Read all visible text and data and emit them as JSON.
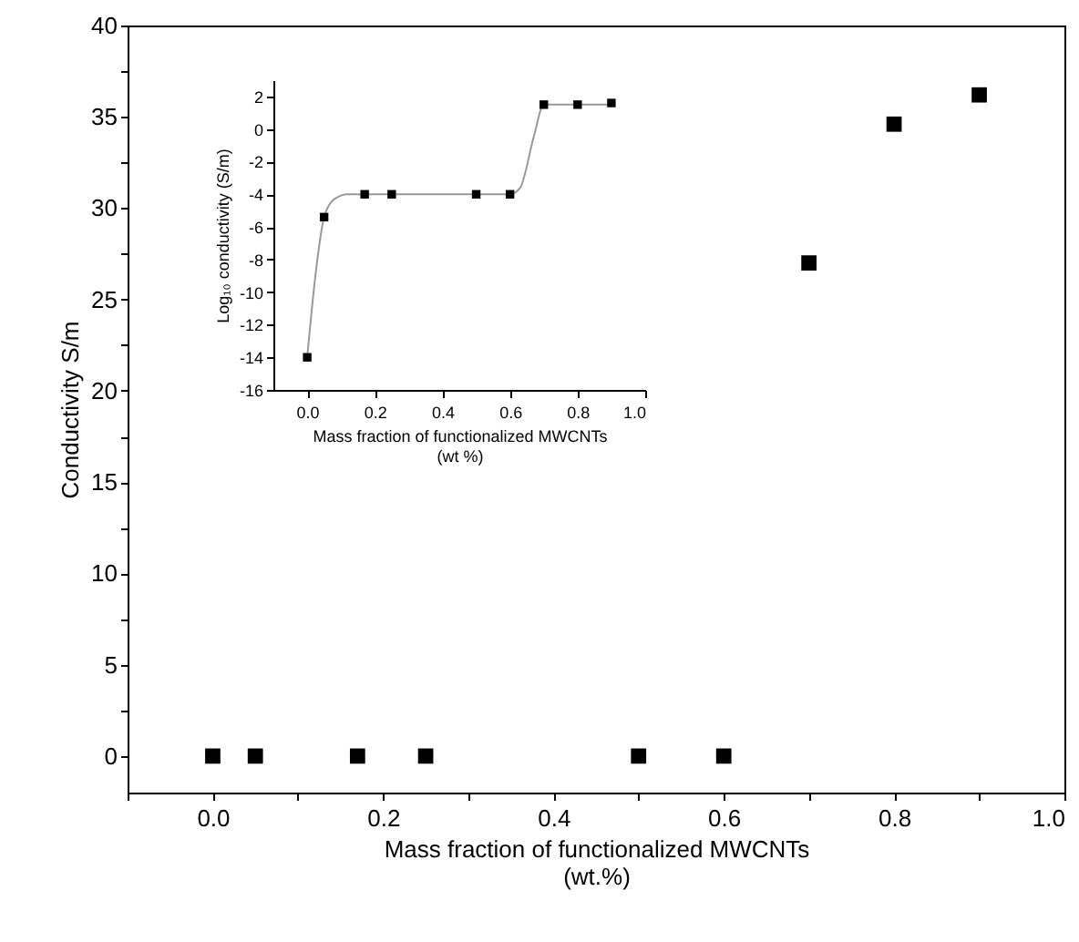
{
  "chart_data": [
    {
      "type": "scatter",
      "xlabel": "Mass fraction of functionalized MWCNTs\n(wt.%)",
      "ylabel": "Conductivity S/m",
      "marker": "square",
      "x": [
        0,
        0.05,
        0.17,
        0.25,
        0.5,
        0.6,
        0.7,
        0.8,
        0.9
      ],
      "series": [
        {
          "color": "#000000",
          "values": [
            0,
            0,
            0,
            0,
            0,
            0,
            27,
            34.6,
            36.2
          ]
        }
      ],
      "xlim": [
        -0.1,
        1.0
      ],
      "ylim": [
        -2,
        40
      ],
      "xticks": [
        {
          "value": -0.1,
          "label": null
        },
        {
          "value": 0,
          "label": "0.0"
        },
        {
          "value": 0.1,
          "label": null
        },
        {
          "value": 0.2,
          "label": "0.2"
        },
        {
          "value": 0.3,
          "label": null
        },
        {
          "value": 0.4,
          "label": "0.4"
        },
        {
          "value": 0.5,
          "label": null
        },
        {
          "value": 0.6,
          "label": "0.6"
        },
        {
          "value": 0.7,
          "label": null
        },
        {
          "value": 0.8,
          "label": "0.8"
        },
        {
          "value": 0.9,
          "label": null
        },
        {
          "value": 1.0,
          "label": "1.0"
        }
      ],
      "yticks": [
        0,
        {
          "value": 2.5,
          "label": null
        },
        5,
        {
          "value": 7.5,
          "label": null
        },
        10,
        {
          "value": 12.5,
          "label": null
        },
        15,
        {
          "value": 17.5,
          "label": null
        },
        20,
        {
          "value": 22.5,
          "label": null
        },
        25,
        {
          "value": 27.5,
          "label": null
        },
        30,
        {
          "value": 32.5,
          "label": null
        },
        35,
        {
          "value": 37.5,
          "label": null
        },
        40
      ],
      "grid": false
    },
    {
      "type": "scatter",
      "xlabel": "Mass fraction of functionalized MWCNTs\n(wt %)",
      "ylabel": "Log₁₀ conductivity (S/m)",
      "marker": "square",
      "x": [
        0,
        0.05,
        0.17,
        0.25,
        0.5,
        0.6,
        0.7,
        0.8,
        0.9
      ],
      "series": [
        {
          "color": "#000000",
          "values": [
            -14,
            -5.4,
            -4,
            -4,
            -4,
            -4,
            1.5,
            1.5,
            1.6
          ]
        },
        {
          "type": "line",
          "color": "#999999",
          "marker": "none",
          "x": [
            0,
            0.03,
            0.05,
            0.08,
            0.12,
            0.3,
            0.6,
            0.63,
            0.67,
            0.7,
            0.9
          ],
          "values": [
            -14,
            -8,
            -5.4,
            -4.3,
            -4,
            -4,
            -4,
            -3.6,
            -0.5,
            1.5,
            1.5
          ]
        }
      ],
      "xlim": [
        -0.1,
        1.0
      ],
      "ylim": [
        -16,
        3
      ],
      "xticks": [
        {
          "value": 0,
          "label": "0.0"
        },
        {
          "value": 0.2,
          "label": "0.2"
        },
        {
          "value": 0.4,
          "label": "0.4"
        },
        {
          "value": 0.6,
          "label": "0.6"
        },
        {
          "value": 0.8,
          "label": "0.8"
        },
        {
          "value": 1.0,
          "label": "1.0"
        }
      ],
      "yticks": [
        -16,
        -14,
        -12,
        -10,
        -8,
        -6,
        -4,
        -2,
        0,
        2
      ],
      "grid": false
    }
  ]
}
